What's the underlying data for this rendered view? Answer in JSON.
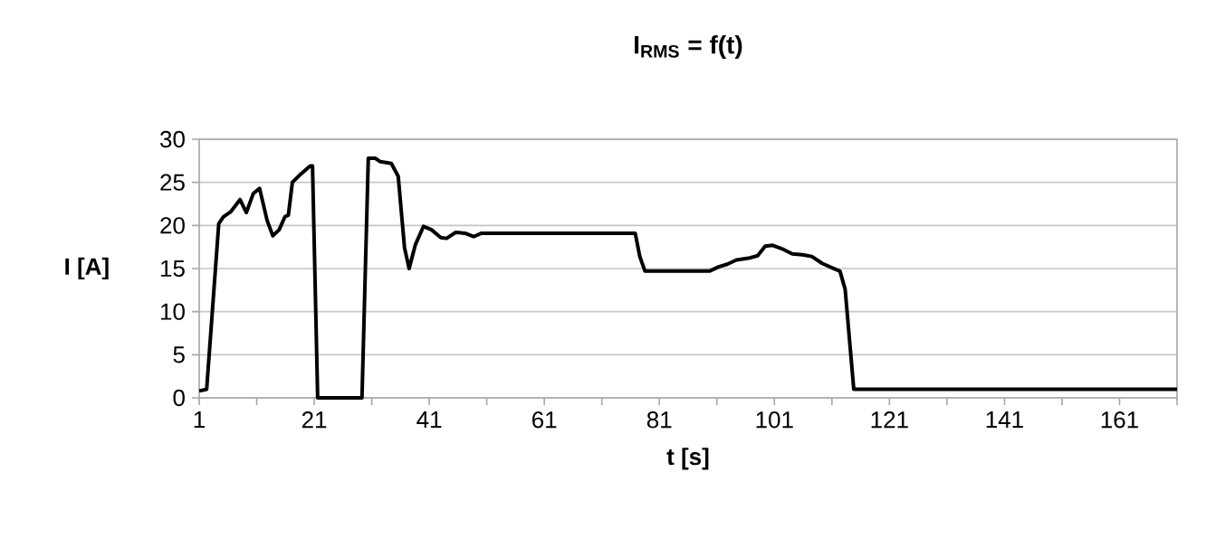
{
  "chart_data": {
    "type": "line",
    "title": "**I$_{RMS}$ = f(t)**",
    "xlabel": "t [s]",
    "ylabel": "I [A]",
    "x": [
      1,
      2.3,
      4.4,
      5.2,
      6.5,
      8.1,
      9.2,
      10.4,
      11.5,
      12.8,
      13.8,
      14.9,
      15.9,
      16.5,
      17.2,
      18.4,
      20.3,
      20.7,
      21.6,
      29.3,
      30.4,
      31.6,
      32.5,
      34.4,
      35.6,
      36.7,
      37.5,
      38.6,
      40,
      41.4,
      43,
      44,
      45.6,
      47.2,
      48.7,
      50.1,
      76.8,
      77.6,
      78.5,
      89.7,
      91.3,
      92.8,
      94.4,
      96.5,
      98.1,
      99.4,
      100.7,
      102.3,
      104.1,
      105.9,
      107.5,
      109.3,
      111,
      112.4,
      113.3,
      114.8,
      171
    ],
    "series": [
      {
        "color": "#000000",
        "values": [
          0.8,
          1,
          20.2,
          21,
          21.6,
          23,
          21.5,
          23.7,
          24.3,
          20.6,
          18.8,
          19.5,
          21,
          21.2,
          25,
          25.8,
          26.9,
          26.9,
          0,
          0,
          27.8,
          27.8,
          27.4,
          27.2,
          25.7,
          17.4,
          15,
          17.8,
          19.9,
          19.5,
          18.6,
          18.5,
          19.2,
          19.1,
          18.7,
          19.1,
          19.1,
          16.4,
          14.7,
          14.7,
          15.2,
          15.5,
          16,
          16.2,
          16.5,
          17.6,
          17.7,
          17.3,
          16.7,
          16.6,
          16.4,
          15.6,
          15.1,
          14.7,
          12.6,
          1,
          1
        ]
      }
    ],
    "xlim": [
      1,
      171
    ],
    "ylim": [
      0,
      30
    ],
    "xticks": [
      1,
      {
        "value": 11,
        "label": null
      },
      21,
      {
        "value": 31,
        "label": null
      },
      41,
      {
        "value": 51,
        "label": null
      },
      61,
      {
        "value": 71,
        "label": null
      },
      81,
      {
        "value": 91,
        "label": null
      },
      101,
      {
        "value": 111,
        "label": null
      },
      121,
      {
        "value": 131,
        "label": null
      },
      141,
      {
        "value": 151,
        "label": null
      },
      161,
      {
        "value": 171,
        "label": null
      }
    ],
    "yticks": [
      0,
      5,
      10,
      15,
      20,
      25,
      30
    ],
    "grid": "y",
    "line_style": "solid"
  }
}
